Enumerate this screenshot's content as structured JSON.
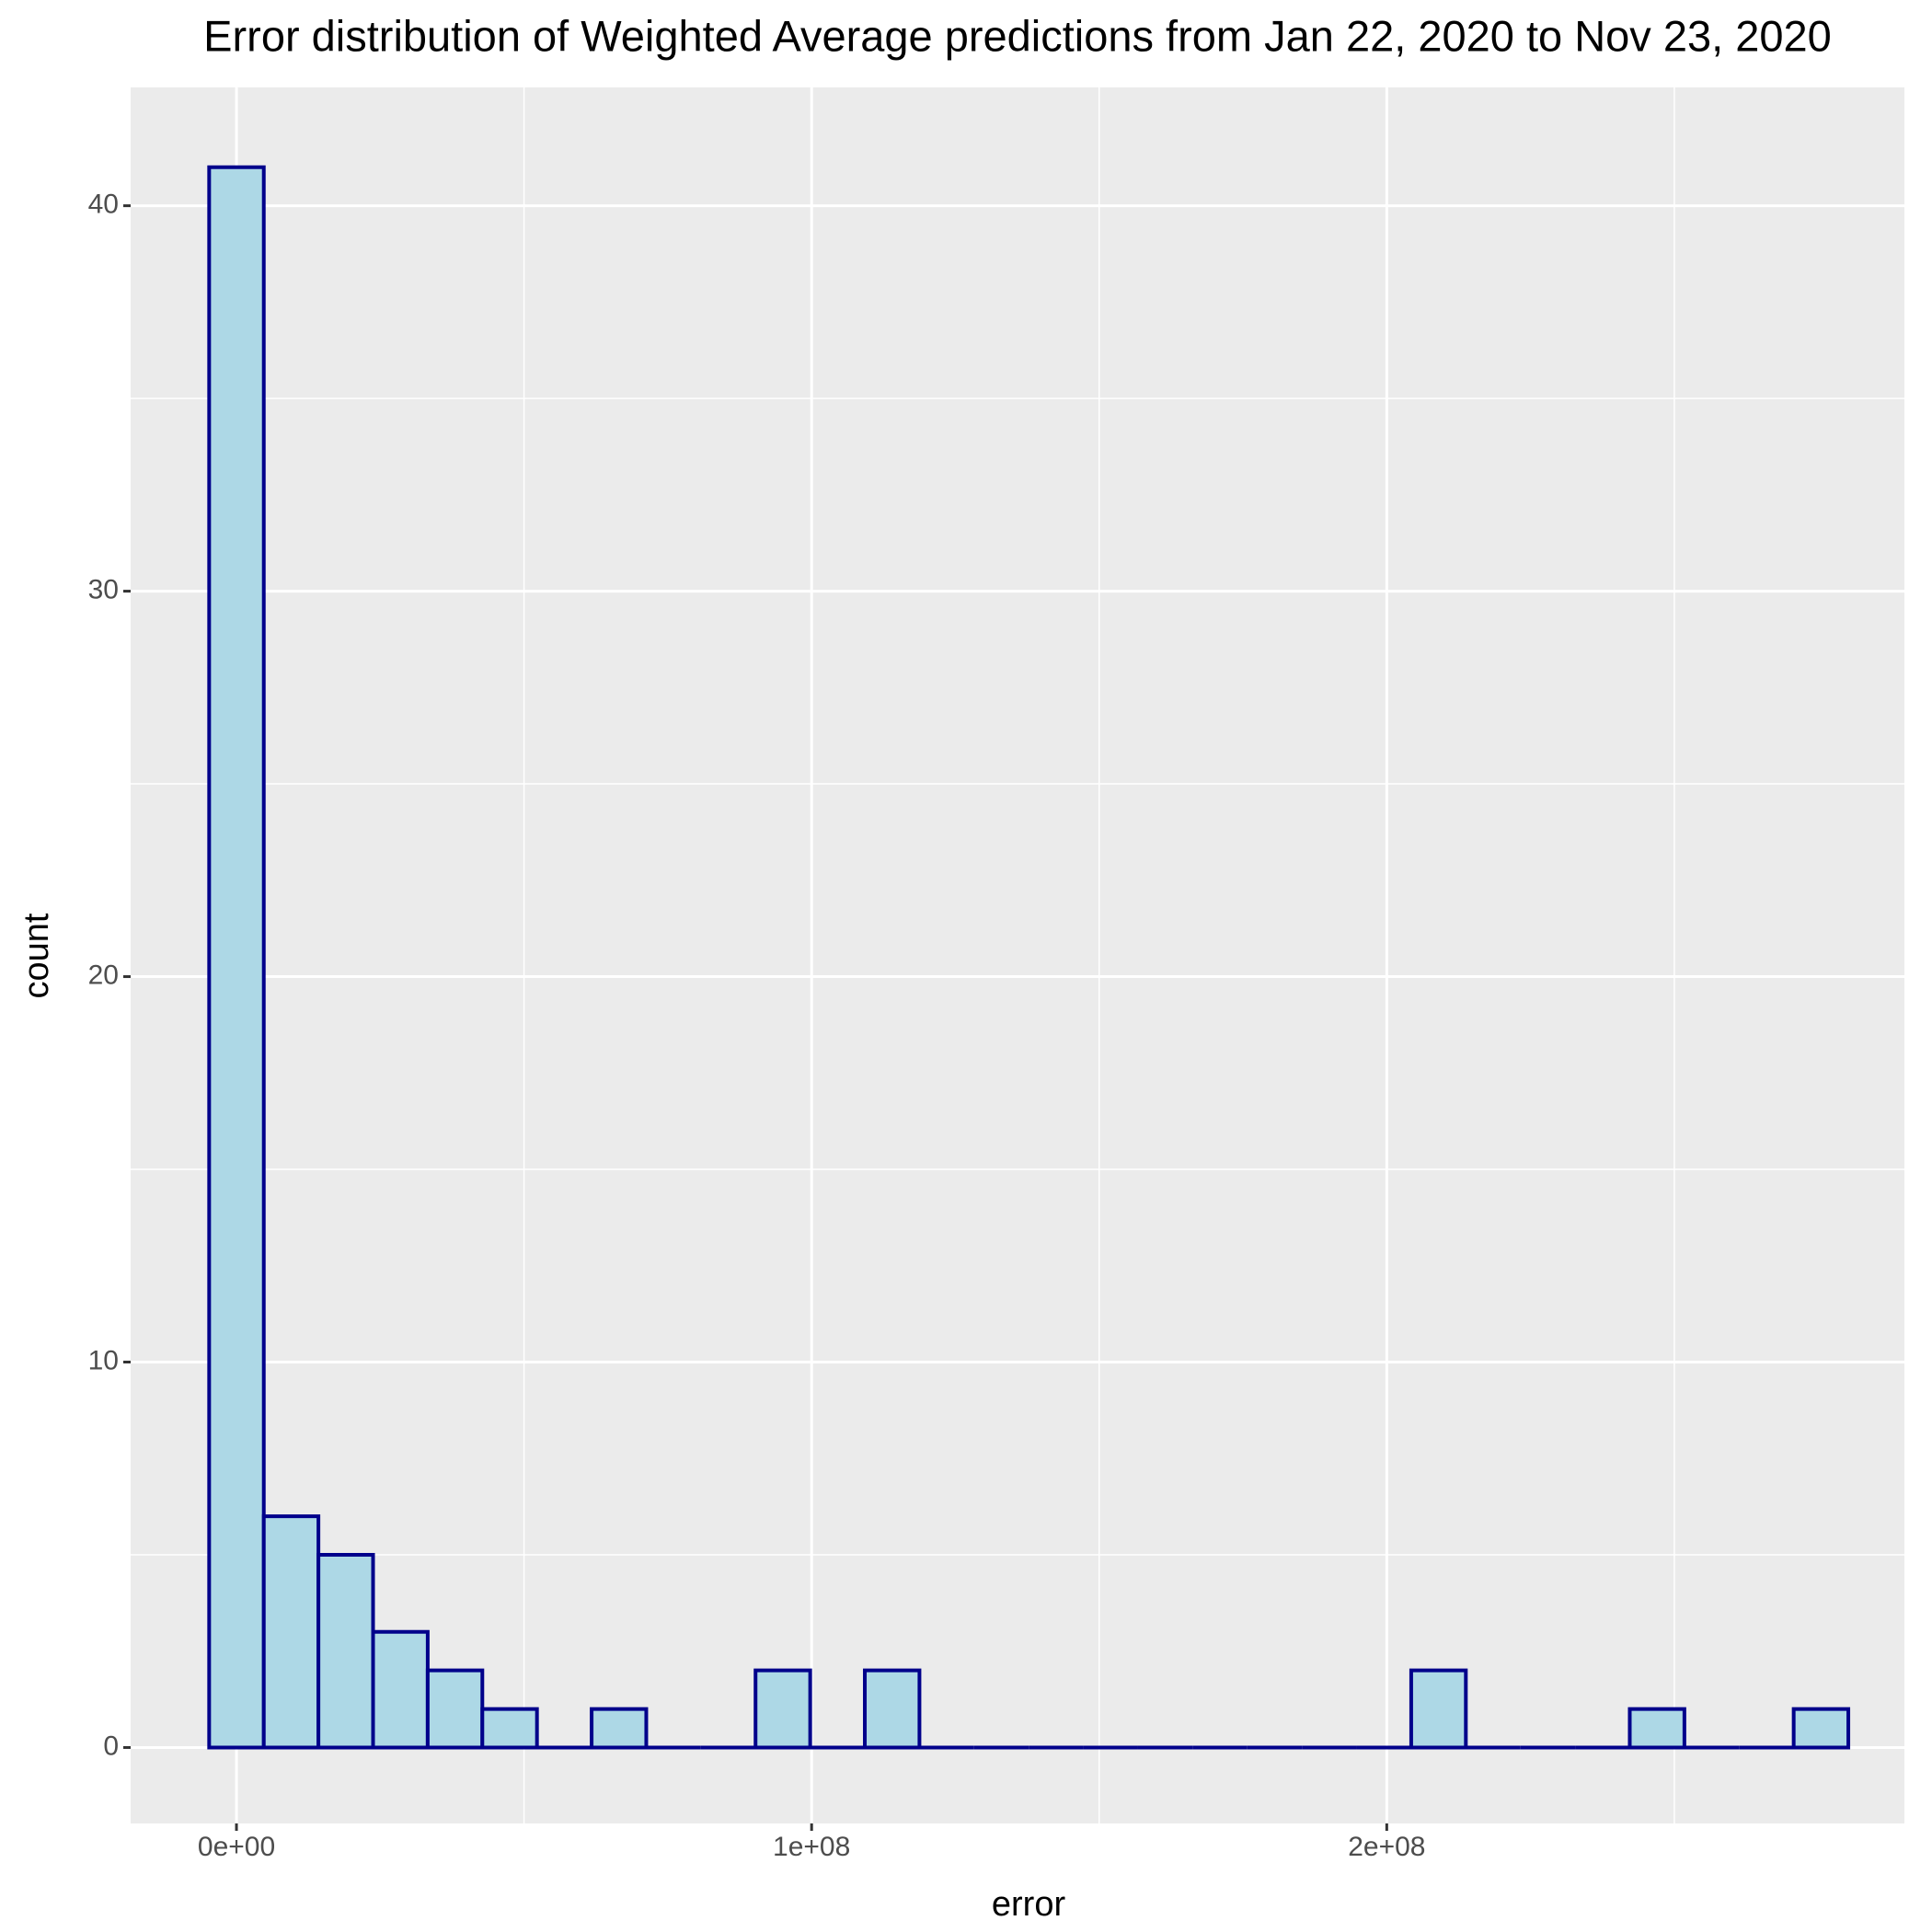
{
  "chart_data": {
    "type": "histogram",
    "title": "Error distribution of Weighted Average predictions from Jan 22, 2020 to Nov 23, 2020",
    "x_label": "error",
    "y_label": "count",
    "bins": [
      -4750000,
      4750000,
      14250000,
      23750000,
      33250000,
      42750000,
      52250000,
      61750000,
      71250000,
      80750000,
      90250000,
      99750000,
      109250000,
      118750000,
      128250000,
      137750000,
      147250000,
      156750000,
      166250000,
      175750000,
      185250000,
      194750000,
      204250000,
      213750000,
      223250000,
      232750000,
      242250000,
      251750000,
      261250000,
      270750000,
      280250000
    ],
    "values": [
      41,
      6,
      5,
      3,
      2,
      1,
      0,
      1,
      0,
      0,
      2,
      0,
      2,
      0,
      0,
      0,
      0,
      0,
      0,
      0,
      0,
      0,
      2,
      0,
      0,
      0,
      1,
      0,
      0,
      1
    ],
    "color": "#add8e6",
    "edge_color": "#00008b",
    "xlim": [
      -18400000,
      290000000
    ],
    "ylim": [
      -1.97,
      43.07
    ],
    "xticks": [
      {
        "value": 0,
        "label": "0e+00"
      },
      {
        "value": 100000000,
        "label": "1e+08"
      },
      {
        "value": 200000000,
        "label": "2e+08"
      }
    ],
    "yticks": [
      0,
      10,
      20,
      30,
      40
    ],
    "x_minor_grid": [
      50000000,
      150000000,
      250000000
    ],
    "y_minor_grid": [
      5,
      15,
      25,
      35
    ],
    "grid": true
  }
}
